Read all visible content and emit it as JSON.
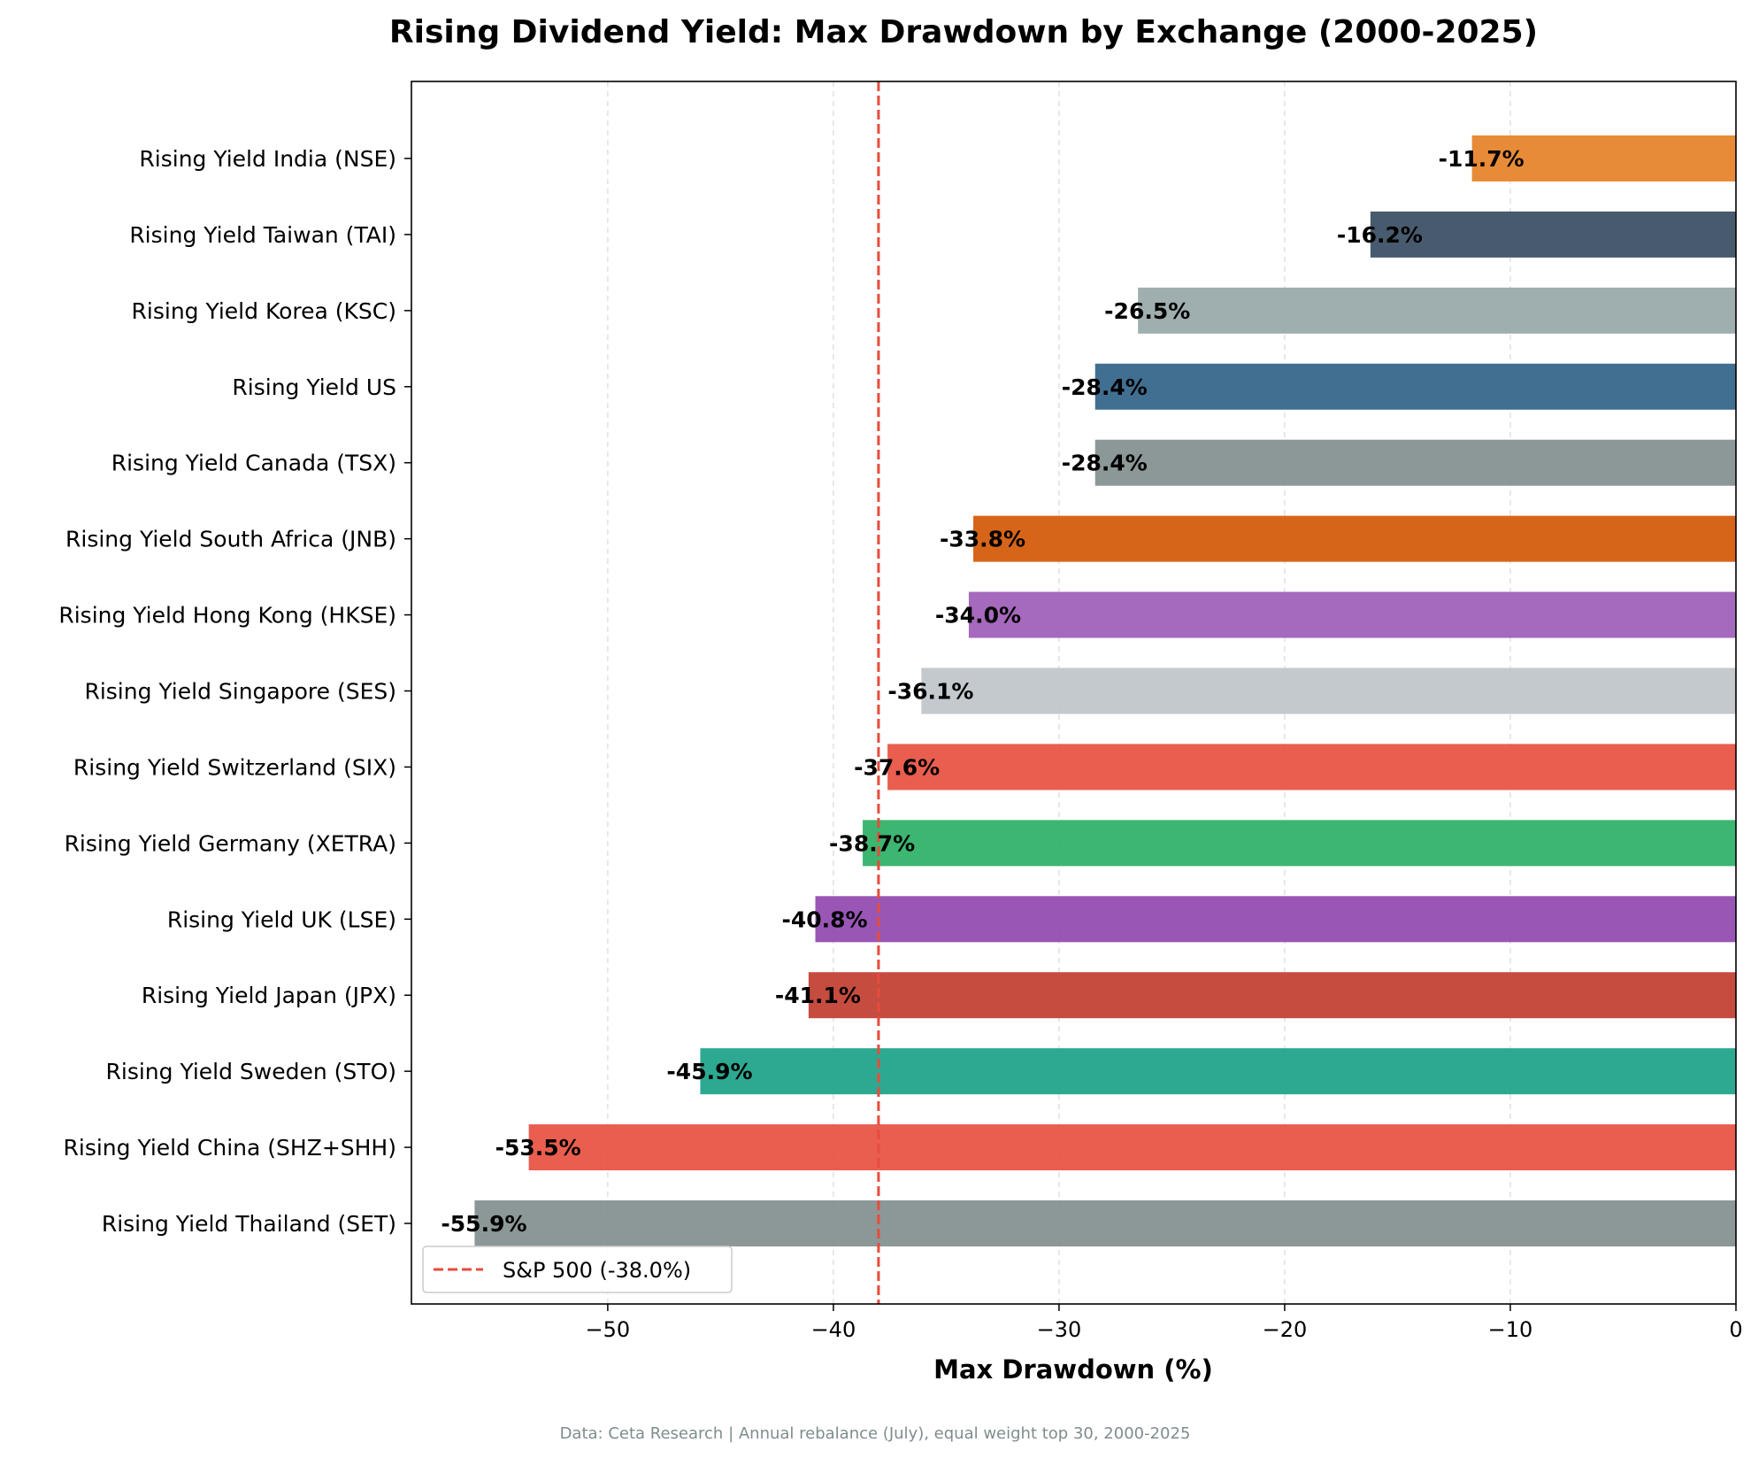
{
  "chart_data": {
    "type": "bar",
    "orientation": "horizontal",
    "title": "Rising Dividend Yield: Max Drawdown by Exchange (2000-2025)",
    "xlabel": "Max Drawdown (%)",
    "ylabel": "",
    "xlim": [
      -58.7,
      0
    ],
    "xticks": [
      -50,
      -40,
      -30,
      -20,
      -10,
      0
    ],
    "xtick_labels": [
      "−50",
      "−40",
      "−30",
      "−20",
      "−10",
      "0"
    ],
    "grid": "vertical dashed",
    "categories": [
      "Rising Yield India (NSE)",
      "Rising Yield Taiwan (TAI)",
      "Rising Yield Korea (KSC)",
      "Rising Yield US",
      "Rising Yield Canada (TSX)",
      "Rising Yield South Africa (JNB)",
      "Rising Yield Hong Kong (HKSE)",
      "Rising Yield Singapore (SES)",
      "Rising Yield Switzerland (SIX)",
      "Rising Yield Germany (XETRA)",
      "Rising Yield UK (LSE)",
      "Rising Yield Japan (JPX)",
      "Rising Yield Sweden (STO)",
      "Rising Yield China (SHZ+SHH)",
      "Rising Yield Thailand (SET)"
    ],
    "values": [
      -11.7,
      -16.2,
      -26.5,
      -28.4,
      -28.4,
      -33.8,
      -34.0,
      -36.1,
      -37.6,
      -38.7,
      -40.8,
      -41.1,
      -45.9,
      -53.5,
      -55.9
    ],
    "value_labels": [
      "-11.7%",
      "-16.2%",
      "-26.5%",
      "-28.4%",
      "-28.4%",
      "-33.8%",
      "-34.0%",
      "-36.1%",
      "-37.6%",
      "-38.7%",
      "-40.8%",
      "-41.1%",
      "-45.9%",
      "-53.5%",
      "-55.9%"
    ],
    "colors": [
      "#e67e22",
      "#34495e",
      "#95a5a6",
      "#2c5f86",
      "#7f8c8d",
      "#d35400",
      "#9b59b6",
      "#bdc3c7",
      "#e74c3c",
      "#27ae60",
      "#8e44ad",
      "#c0392b",
      "#16a085",
      "#e74c3c",
      "#7f8c8d"
    ],
    "reference_line": {
      "value": -38.0,
      "label": "S&P 500 (-38.0%)",
      "color": "#e74c3c",
      "style": "dashed"
    },
    "legend_placement": "lower-left",
    "footnote": "Data: Ceta Research | Annual rebalance (July), equal weight top 30, 2000-2025"
  }
}
